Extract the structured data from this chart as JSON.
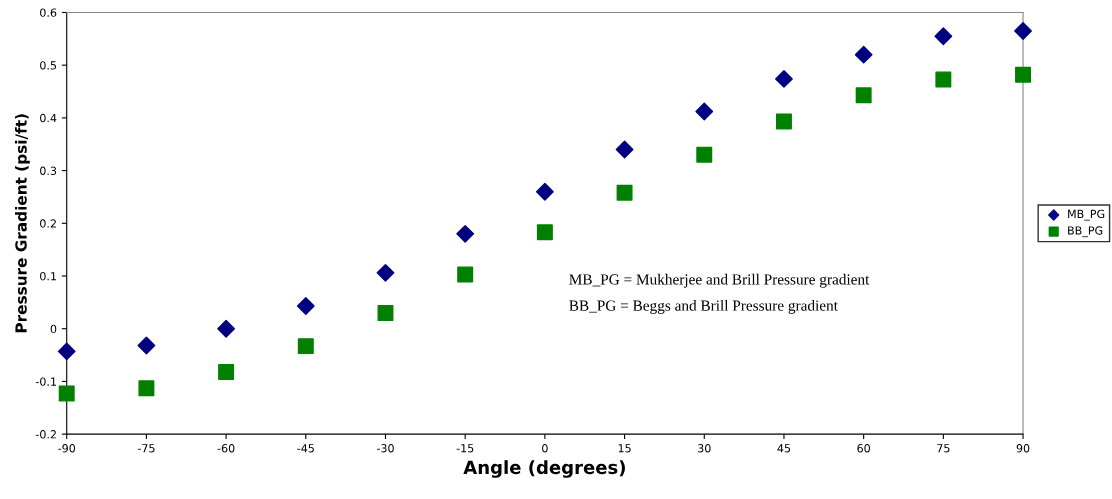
{
  "chart_data": {
    "type": "scatter",
    "xlabel": "Angle (degrees)",
    "ylabel": "Pressure Gradient (psi/ft)",
    "x": [
      -90,
      -75,
      -60,
      -45,
      -30,
      -15,
      0,
      15,
      30,
      45,
      60,
      75,
      90
    ],
    "series": [
      {
        "name": "MB_PG",
        "color": "#000080",
        "marker": "diamond",
        "values": [
          -0.043,
          -0.032,
          0.0,
          0.043,
          0.106,
          0.18,
          0.26,
          0.34,
          0.412,
          0.474,
          0.52,
          0.555,
          0.565
        ]
      },
      {
        "name": "BB_PG",
        "color": "#008000",
        "marker": "square",
        "values": [
          -0.123,
          -0.113,
          -0.082,
          -0.033,
          0.03,
          0.103,
          0.183,
          0.258,
          0.33,
          0.393,
          0.443,
          0.473,
          0.482
        ]
      }
    ],
    "xlim": [
      -90,
      90
    ],
    "xticks": [
      -90,
      -75,
      -60,
      -45,
      -30,
      -15,
      0,
      15,
      30,
      45,
      60,
      75,
      90
    ],
    "ylim": [
      -0.2,
      0.6
    ],
    "yticks": [
      -0.2,
      -0.1,
      0,
      0.1,
      0.2,
      0.3,
      0.4,
      0.5,
      0.6
    ],
    "annotations": [
      "MB_PG = Mukherjee and Brill Pressure gradient",
      "BB_PG = Beggs and Brill Pressure gradient"
    ],
    "grid": false,
    "legend": "right"
  }
}
